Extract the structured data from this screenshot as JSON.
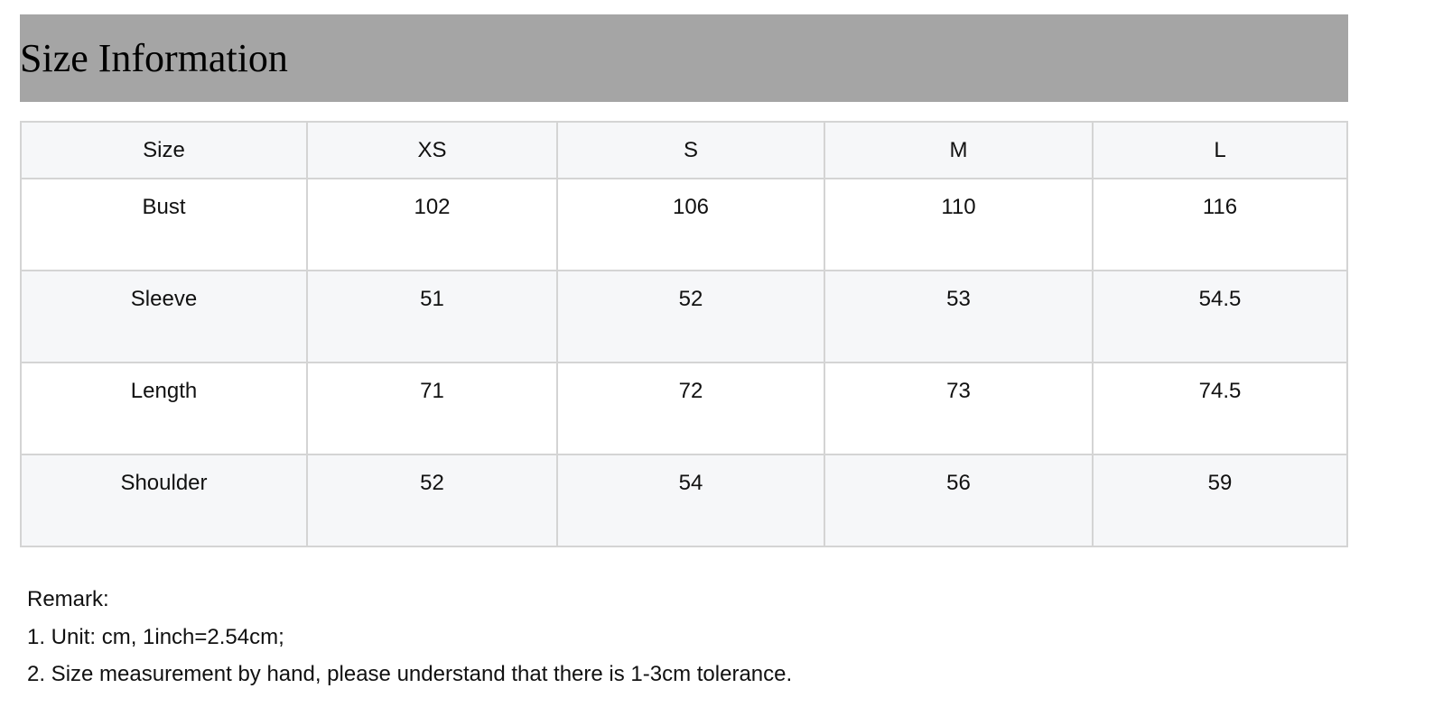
{
  "title": "Size Information",
  "table": {
    "header": [
      "Size",
      "XS",
      "S",
      "M",
      "L"
    ],
    "rows": [
      [
        "Bust",
        "102",
        "106",
        "110",
        "116"
      ],
      [
        "Sleeve",
        "51",
        "52",
        "53",
        "54.5"
      ],
      [
        "Length",
        "71",
        "72",
        "73",
        "74.5"
      ],
      [
        "Shoulder",
        "52",
        "54",
        "56",
        "59"
      ]
    ]
  },
  "remarks": [
    "Remark:",
    "1. Unit: cm, 1inch=2.54cm;",
    "2. Size measurement by hand, please understand that there is 1-3cm tolerance."
  ]
}
